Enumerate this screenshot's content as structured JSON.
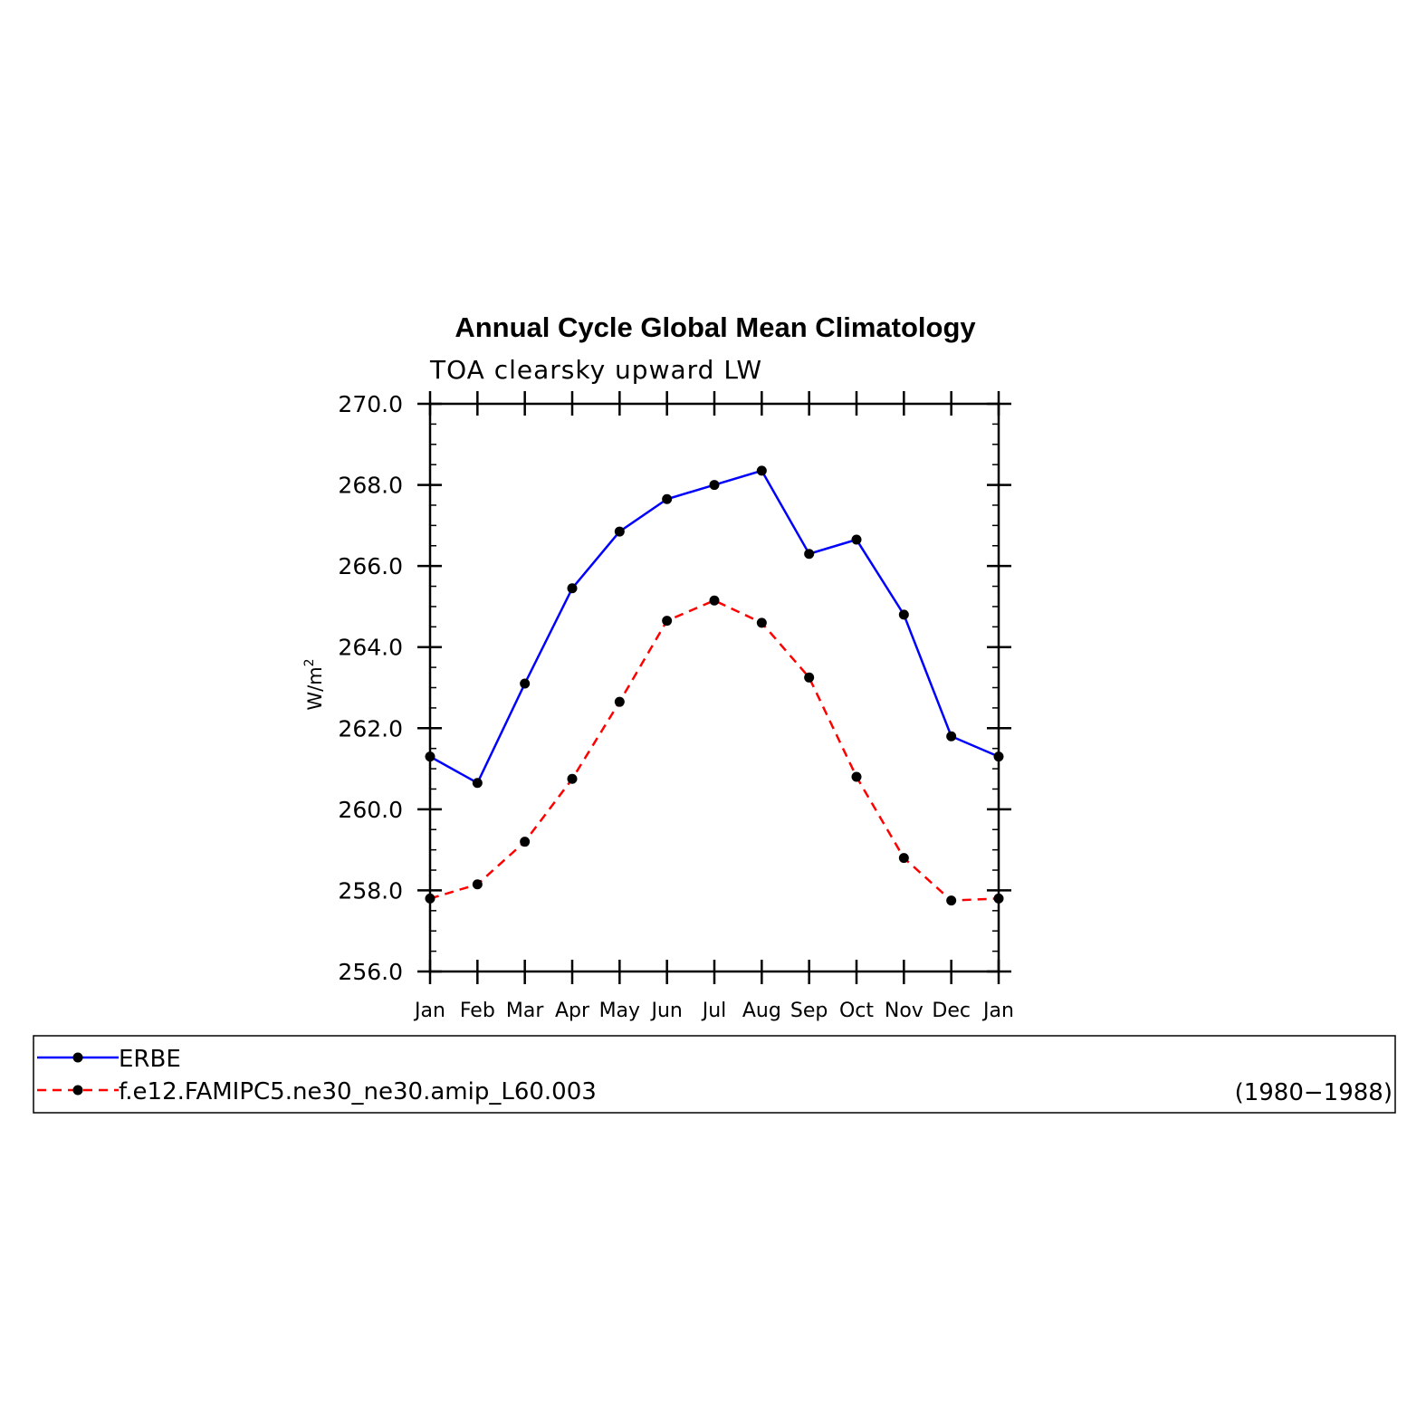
{
  "chart_data": {
    "type": "line",
    "title": "Annual Cycle Global Mean Climatology",
    "subtitle": "TOA clearsky upward LW",
    "ylabel": "W/m",
    "ylabel_superscript": "2",
    "ylim": [
      256.0,
      270.0
    ],
    "yticks": [
      "256.0",
      "258.0",
      "260.0",
      "262.0",
      "264.0",
      "266.0",
      "268.0",
      "270.0"
    ],
    "categories": [
      "Jan",
      "Feb",
      "Mar",
      "Apr",
      "May",
      "Jun",
      "Jul",
      "Aug",
      "Sep",
      "Oct",
      "Nov",
      "Dec",
      "Jan"
    ],
    "series": [
      {
        "name": "ERBE",
        "color": "#0000ff",
        "dash": "solid",
        "values": [
          261.3,
          260.65,
          263.1,
          265.45,
          266.85,
          267.65,
          268.0,
          268.35,
          266.3,
          266.65,
          264.8,
          261.8,
          261.3
        ]
      },
      {
        "name": "f.e12.FAMIPC5.ne30_ne30.amip_L60.003",
        "color": "#ff0000",
        "dash": "dashed",
        "values": [
          257.8,
          258.15,
          259.2,
          260.75,
          262.65,
          264.65,
          265.15,
          264.6,
          263.25,
          260.8,
          258.8,
          257.75,
          257.8
        ]
      }
    ],
    "legend": {
      "placement": "bottom",
      "period": "(1980−1988)"
    }
  }
}
